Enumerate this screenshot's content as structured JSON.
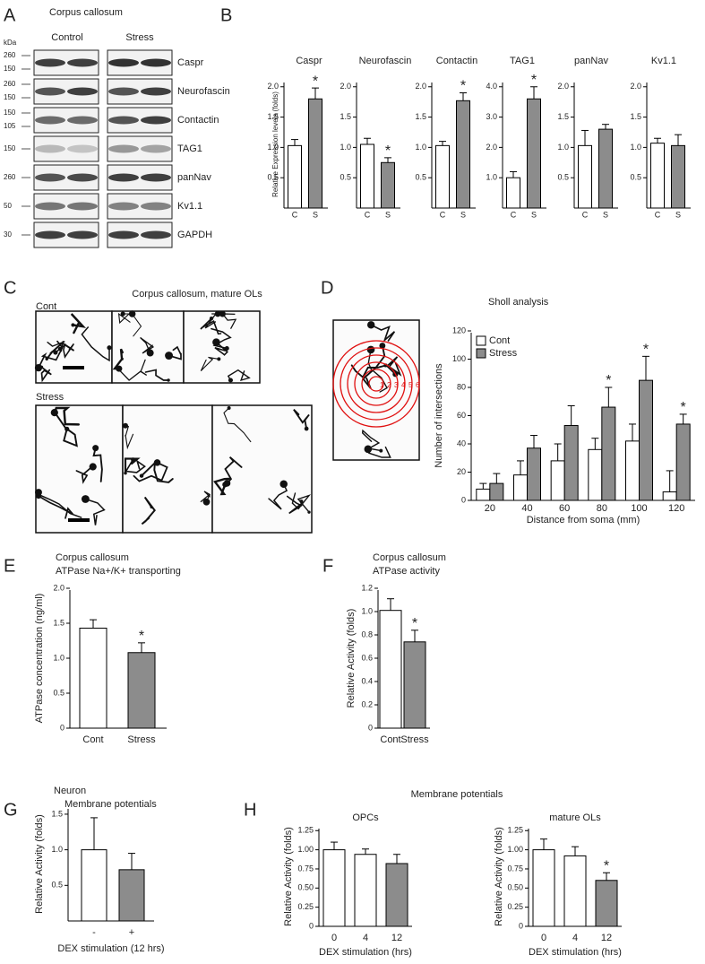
{
  "panel_letters": [
    "A",
    "B",
    "C",
    "D",
    "E",
    "F",
    "G",
    "H"
  ],
  "blot": {
    "title": "Corpus callosum",
    "unit": "kDa",
    "groups": [
      "Control",
      "Stress"
    ],
    "rows": [
      {
        "label": "Caspr",
        "markers": [
          "260",
          "150"
        ]
      },
      {
        "label": "Neurofascin",
        "markers": [
          "260",
          "150"
        ]
      },
      {
        "label": "Contactin",
        "markers": [
          "150",
          "105"
        ]
      },
      {
        "label": "TAG1",
        "markers": [
          "150"
        ]
      },
      {
        "label": "panNav",
        "markers": [
          "260"
        ]
      },
      {
        "label": "Kv1.1",
        "markers": [
          "50"
        ]
      },
      {
        "label": "GAPDH",
        "markers": [
          "30"
        ]
      }
    ]
  },
  "micrographs": {
    "title": "Corpus callosum, mature OLs",
    "groups": [
      "Cont",
      "Stress"
    ]
  },
  "sholl_inset": {
    "rings": [
      "1",
      "2",
      "3",
      "4",
      "5",
      "6"
    ]
  },
  "h_title": "Membrane potentials",
  "chart_data": [
    {
      "type": "bar",
      "title": "Caspr",
      "ylabel": "Relative Expression levels (folds)",
      "categories": [
        "C",
        "S"
      ],
      "values": [
        1.03,
        1.8
      ],
      "errors": [
        0.1,
        0.18
      ],
      "colors": [
        "#ffffff",
        "#8c8c8c"
      ],
      "ylim": [
        0,
        2.1
      ],
      "yticks": [
        0.5,
        {
          "value": 1,
          "label": "1.0"
        },
        1.5,
        {
          "value": 2,
          "label": "2.0"
        }
      ],
      "significant": [
        false,
        true
      ],
      "sig_label": "*"
    },
    {
      "type": "bar",
      "title": "Neurofascin",
      "categories": [
        "C",
        "S"
      ],
      "values": [
        1.05,
        0.75
      ],
      "errors": [
        0.1,
        0.08
      ],
      "colors": [
        "#ffffff",
        "#8c8c8c"
      ],
      "ylim": [
        0,
        2.1
      ],
      "yticks": [
        0.5,
        {
          "value": 1,
          "label": "1.0"
        },
        1.5,
        {
          "value": 2,
          "label": "2.0"
        }
      ],
      "significant": [
        false,
        true
      ],
      "sig_label": "*"
    },
    {
      "type": "bar",
      "title": "Contactin",
      "categories": [
        "C",
        "S"
      ],
      "values": [
        1.03,
        1.77
      ],
      "errors": [
        0.07,
        0.13
      ],
      "colors": [
        "#ffffff",
        "#8c8c8c"
      ],
      "ylim": [
        0,
        2.1
      ],
      "yticks": [
        0.5,
        {
          "value": 1,
          "label": "1.0"
        },
        1.5,
        {
          "value": 2,
          "label": "2.0"
        }
      ],
      "significant": [
        false,
        true
      ],
      "sig_label": "*"
    },
    {
      "type": "bar",
      "title": "TAG1",
      "categories": [
        "C",
        "S"
      ],
      "values": [
        1.0,
        3.6
      ],
      "errors": [
        0.2,
        0.4
      ],
      "colors": [
        "#ffffff",
        "#8c8c8c"
      ],
      "ylim": [
        0,
        4.2
      ],
      "yticks": [
        {
          "value": 1,
          "label": "1.0"
        },
        {
          "value": 2,
          "label": "2.0"
        },
        {
          "value": 3,
          "label": "3.0"
        },
        {
          "value": 4,
          "label": "4.0"
        }
      ],
      "significant": [
        false,
        true
      ],
      "sig_label": "*"
    },
    {
      "type": "bar",
      "title": "panNav",
      "categories": [
        "C",
        "S"
      ],
      "values": [
        1.03,
        1.3
      ],
      "errors": [
        0.25,
        0.08
      ],
      "colors": [
        "#ffffff",
        "#8c8c8c"
      ],
      "ylim": [
        0,
        2.1
      ],
      "yticks": [
        0.5,
        {
          "value": 1,
          "label": "1.0"
        },
        1.5,
        {
          "value": 2,
          "label": "2.0"
        }
      ]
    },
    {
      "type": "bar",
      "title": "Kv1.1",
      "categories": [
        "C",
        "S"
      ],
      "values": [
        1.07,
        1.03
      ],
      "errors": [
        0.08,
        0.18
      ],
      "colors": [
        "#ffffff",
        "#8c8c8c"
      ],
      "ylim": [
        0,
        2.1
      ],
      "yticks": [
        0.5,
        {
          "value": 1,
          "label": "1.0"
        },
        1.5,
        {
          "value": 2,
          "label": "2.0"
        }
      ]
    },
    {
      "type": "bar",
      "title": "Sholl analysis",
      "xlabel": "Distance from soma (mm)",
      "ylabel": "Number of intersections",
      "categories": [
        "20",
        "40",
        "60",
        "80",
        "100",
        "120"
      ],
      "legend": "upper left",
      "ylim": [
        0,
        120
      ],
      "yticks": [
        0,
        20,
        40,
        60,
        80,
        100,
        120
      ],
      "series": [
        {
          "name": "Cont",
          "color": "#ffffff",
          "values": [
            8,
            18,
            28,
            36,
            42,
            6
          ],
          "errors": [
            4,
            10,
            12,
            8,
            12,
            15
          ]
        },
        {
          "name": "Stress",
          "color": "#8c8c8c",
          "values": [
            12,
            37,
            53,
            66,
            85,
            54
          ],
          "errors": [
            7,
            9,
            14,
            14,
            17,
            7
          ],
          "significant": [
            false,
            false,
            false,
            true,
            true,
            true
          ],
          "sig_label": "*"
        }
      ]
    },
    {
      "type": "bar",
      "title": "Corpus callosum",
      "subtitle": "ATPase Na+/K+ transporting",
      "ylabel": "ATPase concentration (ng/ml)",
      "categories": [
        "Cont",
        "Stress"
      ],
      "values": [
        1.43,
        1.08
      ],
      "errors": [
        0.12,
        0.14
      ],
      "colors": [
        "#ffffff",
        "#8c8c8c"
      ],
      "ylim": [
        0,
        2.0
      ],
      "yticks": [
        0,
        0.5,
        {
          "value": 1,
          "label": "1.0"
        },
        1.5,
        {
          "value": 2,
          "label": "2.0"
        }
      ],
      "significant": [
        false,
        true
      ],
      "sig_label": "*"
    },
    {
      "type": "bar",
      "title": "Corpus callosum",
      "subtitle": "ATPase activity",
      "ylabel": "Relative Activity (folds)",
      "categories": [
        "Cont",
        "Stress"
      ],
      "values": [
        1.01,
        0.74
      ],
      "errors": [
        0.1,
        0.1
      ],
      "colors": [
        "#ffffff",
        "#8c8c8c"
      ],
      "ylim": [
        0,
        1.2
      ],
      "yticks": [
        0,
        0.2,
        0.4,
        0.6,
        0.8,
        {
          "value": 1,
          "label": "1.0"
        },
        1.2
      ],
      "significant": [
        false,
        true
      ],
      "sig_label": "*"
    },
    {
      "type": "bar",
      "title": "Neuron",
      "subtitle": "Membrane potentials",
      "ylabel": "Relative Activity (folds)",
      "xlabel": "DEX stimulation (12 hrs)",
      "categories": [
        "-",
        "+"
      ],
      "values": [
        1.0,
        0.72
      ],
      "errors": [
        0.45,
        0.23
      ],
      "colors": [
        "#ffffff",
        "#8c8c8c"
      ],
      "ylim": [
        0,
        1.6
      ],
      "yticks": [
        0.5,
        {
          "value": 1,
          "label": "1.0"
        },
        1.5
      ]
    },
    {
      "type": "bar",
      "title": "OPCs",
      "ylabel": "Relative Activity (folds)",
      "xlabel": "DEX stimulation (hrs)",
      "categories": [
        "0",
        "4",
        "12"
      ],
      "values": [
        1.0,
        0.94,
        0.82
      ],
      "errors": [
        0.1,
        0.07,
        0.12
      ],
      "colors": [
        "#ffffff",
        "#ffffff",
        "#8c8c8c"
      ],
      "ylim": [
        0,
        1.3
      ],
      "yticks": [
        0,
        0.25,
        {
          "value": 0.5,
          "label": "0.50"
        },
        0.75,
        {
          "value": 1,
          "label": "1.00"
        },
        1.25
      ]
    },
    {
      "type": "bar",
      "title": "mature OLs",
      "ylabel": "Relative Activity (folds)",
      "xlabel": "DEX stimulation (hrs)",
      "categories": [
        "0",
        "4",
        "12"
      ],
      "values": [
        1.0,
        0.92,
        0.6
      ],
      "errors": [
        0.14,
        0.12,
        0.1
      ],
      "colors": [
        "#ffffff",
        "#ffffff",
        "#8c8c8c"
      ],
      "ylim": [
        0,
        1.3
      ],
      "yticks": [
        0,
        0.25,
        {
          "value": 0.5,
          "label": "0.50"
        },
        0.75,
        {
          "value": 1,
          "label": "1.00"
        },
        1.25
      ],
      "significant": [
        false,
        false,
        true
      ],
      "sig_label": "*"
    }
  ]
}
